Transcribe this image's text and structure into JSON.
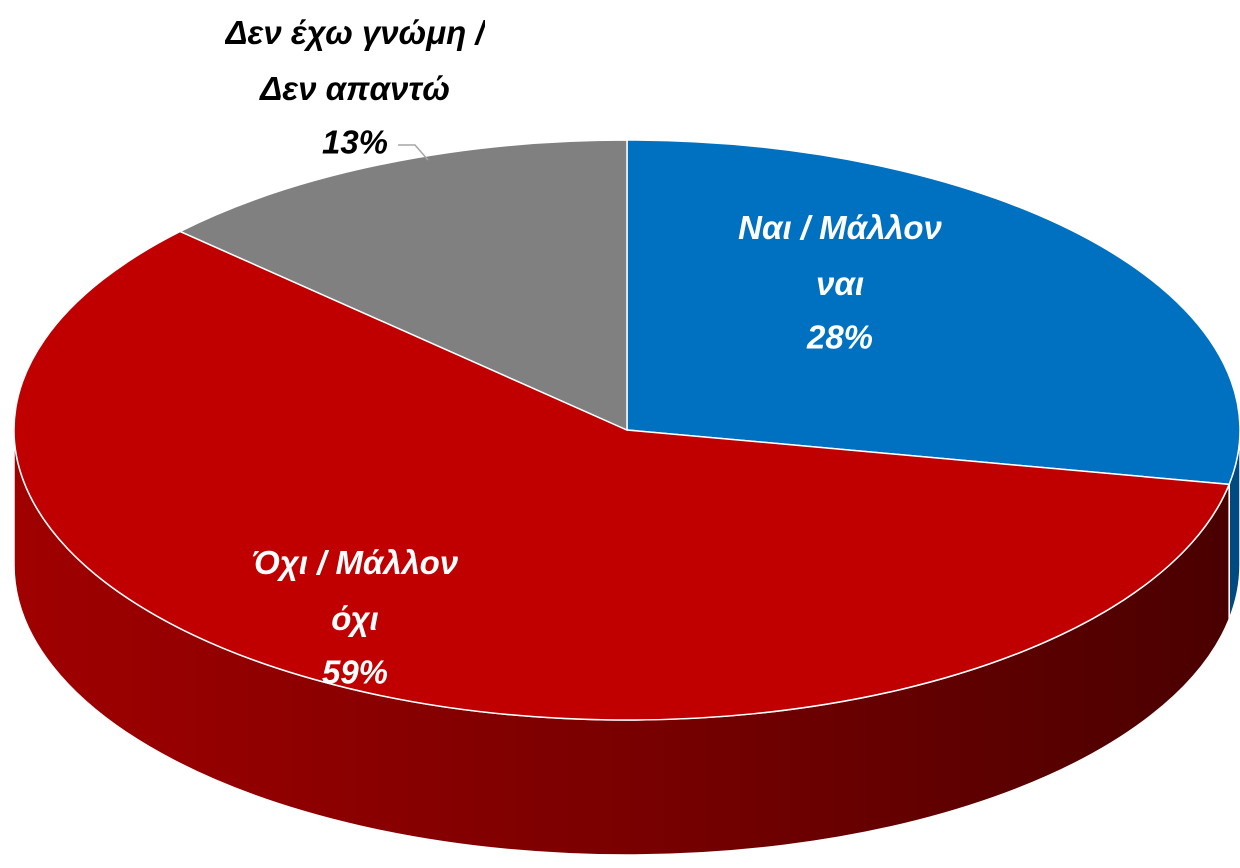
{
  "chart_data": {
    "type": "pie3d",
    "categories": [
      "Ναι / Μάλλον ναι",
      "Όχι / Μάλλον όχι",
      "Δεν έχω γνώμη / Δεν απαντώ"
    ],
    "values": [
      28,
      59,
      13
    ],
    "value_labels": [
      "28%",
      "59%",
      "13%"
    ],
    "colors": [
      "#0070c0",
      "#c00000",
      "#808080"
    ],
    "label_colors": [
      "#ffffff",
      "#ffffff",
      "#000000"
    ]
  }
}
